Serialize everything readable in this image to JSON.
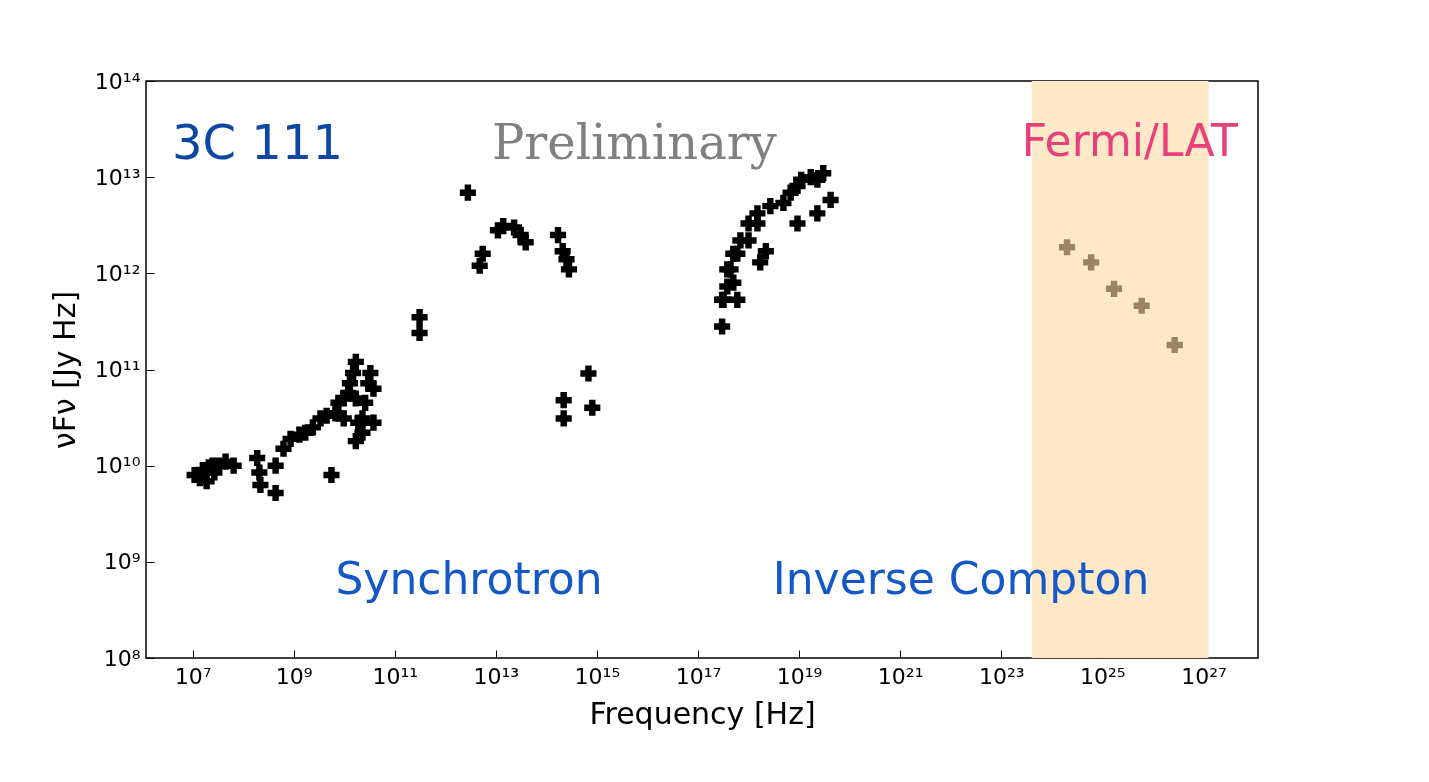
{
  "chart_data": {
    "type": "scatter",
    "xlabel": "Frequency [Hz]",
    "ylabel": "νFν [Jy Hz]",
    "log": "xy",
    "marker": "cross",
    "xlim": [
      1200000.0,
      1.2e+28
    ],
    "ylim": [
      100000000.0,
      100000000000000.0
    ],
    "xticks": [
      {
        "value": 10000000.0,
        "label": "10⁷"
      },
      {
        "value": 1000000000.0,
        "label": "10⁹"
      },
      {
        "value": 100000000000.0,
        "label": "10¹¹"
      },
      {
        "value": 10000000000000.0,
        "label": "10¹³"
      },
      {
        "value": 1000000000000000.0,
        "label": "10¹⁵"
      },
      {
        "value": 1e+17,
        "label": "10¹⁷"
      },
      {
        "value": 1e+19,
        "label": "10¹⁹"
      },
      {
        "value": 1e+21,
        "label": "10²¹"
      },
      {
        "value": 1e+23,
        "label": "10²³"
      },
      {
        "value": 1e+25,
        "label": "10²⁵"
      },
      {
        "value": 1e+27,
        "label": "10²⁷"
      }
    ],
    "yticks": [
      {
        "value": 100000000.0,
        "label": "10⁸"
      },
      {
        "value": 1000000000.0,
        "label": "10⁹"
      },
      {
        "value": 10000000000.0,
        "label": "10¹⁰"
      },
      {
        "value": 100000000000.0,
        "label": "10¹¹"
      },
      {
        "value": 1000000000000.0,
        "label": "10¹²"
      },
      {
        "value": 10000000000000.0,
        "label": "10¹³"
      },
      {
        "value": 100000000000000.0,
        "label": "10¹⁴"
      }
    ],
    "bands": [
      {
        "axis": "x",
        "from": 4e+23,
        "to": 1.26e+27,
        "color": "#fde8c8"
      }
    ],
    "series": [
      {
        "color": "#000000",
        "x": [
          11000000.0,
          14000000.0,
          16000000.0,
          19000000.0,
          21000000.0,
          25000000.0,
          27000000.0,
          33000000.0,
          45000000.0,
          65000000.0,
          190000000.0,
          210000000.0,
          220000000.0,
          440000000.0,
          440000000.0,
          630000000.0,
          870000000.0,
          1300000000.0,
          1700000000.0,
          2400000000.0,
          3400000000.0,
          4500000000.0,
          5600000000.0,
          6700000000.0,
          7700000000.0,
          9800000000.0,
          12000000000.0,
          13000000000.0,
          15000000000.0,
          17000000000.0,
          19000000000.0,
          23000000000.0,
          26000000000.0,
          30000000000.0,
          33000000000.0,
          23000000000.0,
          17000000000.0,
          9800000000.0,
          38000000000.0,
          38000000000.0,
          17000000000.0,
          310000000000.0,
          310000000000.0,
          2800000000000.0,
          5500000000000.0,
          4800000000000.0,
          11000000000000.0,
          14000000000000.0,
          23000000000000.0,
          31000000000000.0,
          39000000000000.0,
          170000000000000.0,
          210000000000000.0,
          250000000000000.0,
          280000000000000.0,
          220000000000000.0,
          220000000000000.0,
          680000000000000.0,
          810000000000000.0,
          3e+17,
          3e+17,
          3.2e+17,
          3.8e+17,
          3.8e+17,
          4.4e+17,
          5e+17,
          5e+17,
          6e+17,
          6e+17,
          6.9e+17,
          1e+18,
          1e+18,
          1.5e+18,
          1.5e+18,
          1.7e+18,
          2.2e+18,
          2.7e+18,
          4.9e+18,
          6.8e+18,
          9.3e+18,
          9.3e+18,
          1.1e+19,
          1.7e+19,
          2.3e+19,
          2.3e+19,
          3e+19,
          4.2e+19
        ],
        "values": [
          8000000000.0,
          7400000000.0,
          9000000000.0,
          6900000000.0,
          9600000000.0,
          10000000000.0,
          8500000000.0,
          10000000000.0,
          11000000000.0,
          10000000000.0,
          12000000000.0,
          8500000000.0,
          6300000000.0,
          5200000000.0,
          10000000000.0,
          15000000000.0,
          19000000000.0,
          21000000000.0,
          22000000000.0,
          25000000000.0,
          31000000000.0,
          33000000000.0,
          8000000000.0,
          35000000000.0,
          45000000000.0,
          50000000000.0,
          57000000000.0,
          72000000000.0,
          92000000000.0,
          120000000000.0,
          28000000000.0,
          31000000000.0,
          45000000000.0,
          72000000000.0,
          92000000000.0,
          22000000000.0,
          50000000000.0,
          31000000000.0,
          63000000000.0,
          28000000000.0,
          18000000000.0,
          350000000000.0,
          240000000000.0,
          6900000000000.0,
          1600000000000.0,
          1200000000000.0,
          2800000000000.0,
          3100000000000.0,
          3000000000000.0,
          2500000000000.0,
          2100000000000.0,
          2500000000000.0,
          1700000000000.0,
          1400000000000.0,
          1100000000000.0,
          48000000000.0,
          31000000000.0,
          91000000000.0,
          40000000000.0,
          280000000000.0,
          530000000000.0,
          530000000000.0,
          730000000000.0,
          1100000000000.0,
          1100000000000.0,
          1600000000000.0,
          800000000000.0,
          530000000000.0,
          1600000000000.0,
          2200000000000.0,
          3300000000000.0,
          2200000000000.0,
          4200000000000.0,
          3300000000000.0,
          1300000000000.0,
          1700000000000.0,
          5000000000000.0,
          5400000000000.0,
          6900000000000.0,
          8100000000000.0,
          3300000000000.0,
          9400000000000.0,
          10000000000000.0,
          9400000000000.0,
          4200000000000.0,
          11000000000000.0,
          5800000000000.0
        ]
      },
      {
        "color": "#9c8462",
        "x": [
          2e+24,
          6e+24,
          1.7e+25,
          6e+25,
          2.7e+26
        ],
        "values": [
          1870000000000.0,
          1300000000000.0,
          690000000000.0,
          460000000000.0,
          180000000000.0
        ]
      }
    ],
    "annotations": [
      "3C 111",
      "Preliminary",
      "Fermi/LAT",
      "Synchrotron",
      "Inverse Compton"
    ]
  }
}
